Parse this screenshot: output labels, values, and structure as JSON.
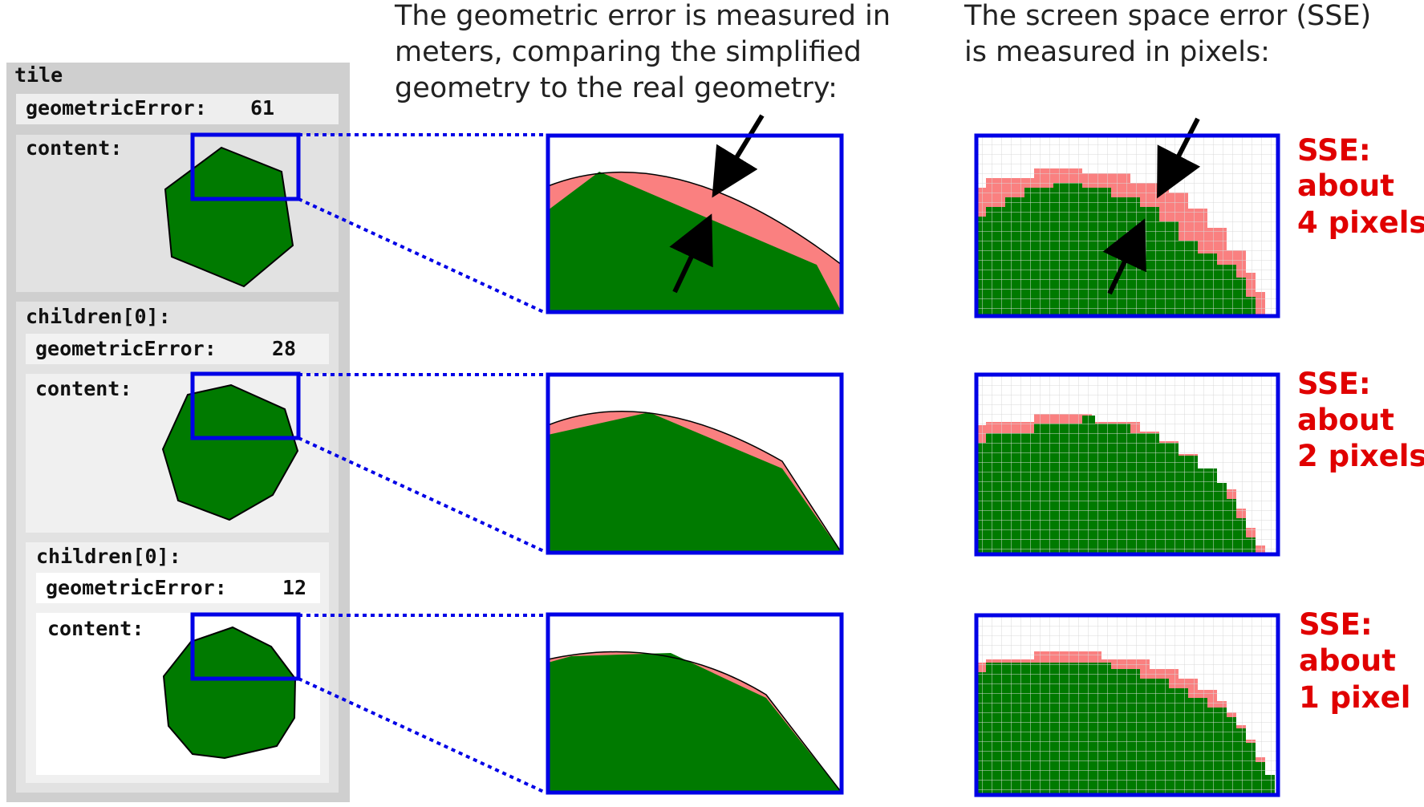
{
  "headings": {
    "geometric_error": [
      "The geometric error is measured in",
      "meters, comparing the simplified",
      "geometry to the real geometry:"
    ],
    "screen_space_error": [
      "The screen space error (SSE)",
      "is measured in pixels:"
    ]
  },
  "tile": {
    "label": "tile",
    "geometric_error_label": "geometricError:",
    "geometric_error": "61",
    "content_label": "content:"
  },
  "children": [
    {
      "label": "children[0]:",
      "geometric_error_label": "geometricError:",
      "geometric_error": "28",
      "content_label": "content:"
    },
    {
      "label": "children[0]:",
      "geometric_error_label": "geometricError:",
      "geometric_error": "12",
      "content_label": "content:"
    }
  ],
  "sse": [
    {
      "lines": [
        "SSE:",
        "about",
        "4 pixels"
      ],
      "pixels": 4
    },
    {
      "lines": [
        "SSE:",
        "about",
        "2 pixels"
      ],
      "pixels": 2
    },
    {
      "lines": [
        "SSE:",
        "about",
        "1 pixel"
      ],
      "pixels": 1
    }
  ],
  "polygon_sides": [
    7,
    8,
    10
  ],
  "colors": {
    "mesh_fill": "#007a00",
    "error_fill": "#fa8080",
    "highlight_frame": "#0000e6",
    "sse_text": "#e00000",
    "panel_outer": "#cfcfcf",
    "panel_mid": "#e2e2e2",
    "panel_inner": "#f0f0f0",
    "panel_innermost": "#ffffff"
  }
}
